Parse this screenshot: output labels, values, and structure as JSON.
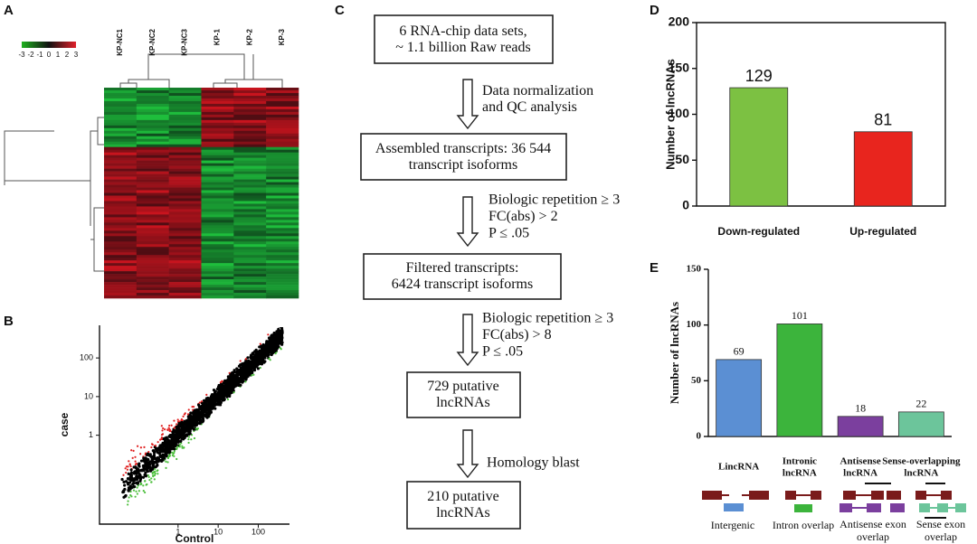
{
  "panel_labels": [
    "A",
    "B",
    "C",
    "D",
    "E"
  ],
  "heatmap": {
    "columns": [
      "KP-NC1",
      "KP-NC2",
      "KP-NC3",
      "KP-1",
      "KP-2",
      "KP-3"
    ],
    "colorbar_ticks": [
      -3,
      -2,
      -1,
      0,
      1,
      2,
      3
    ]
  },
  "scatter": {
    "xlabel": "Control",
    "ylabel": "case",
    "xlim": [
      0.011,
      600
    ],
    "ylim": [
      0.005,
      700
    ],
    "xticks": [
      1,
      10,
      100
    ],
    "yticks": [
      1,
      10,
      100
    ],
    "log_scale": true
  },
  "flowchart": {
    "boxes": [
      "6 RNA-chip data sets,\n~ 1.1 billion Raw reads",
      "Assembled transcripts: 36 544\ntranscript isoforms",
      "Filtered transcripts:\n6424 transcript isoforms",
      "729 putative\nlncRNAs",
      "210 putative\nlncRNAs"
    ],
    "steps": [
      "Data normalization\nand QC analysis",
      "Biologic repetition ≥ 3\nFC(abs) > 2\nP ≤ .05",
      "Biologic repetition ≥ 3\nFC(abs) > 8\nP ≤ .05",
      "Homology blast"
    ]
  },
  "chart_data": [
    {
      "type": "bar",
      "ylabel": "Number of lncRNAs",
      "categories": [
        "Down-regulated",
        "Up-regulated"
      ],
      "values": [
        129,
        81
      ],
      "colors": [
        "#7cc142",
        "#e8251e"
      ],
      "ylim": [
        0,
        200
      ],
      "yticks": [
        0,
        50,
        100,
        150,
        200
      ],
      "grid": false
    },
    {
      "type": "bar",
      "ylabel": "Number of lncRNAs",
      "categories": [
        "LincRNA",
        "Intronic\nlncRNA",
        "Antisense\nlncRNA",
        "Sense-overlapping\nlncRNA"
      ],
      "values": [
        69,
        101,
        18,
        22
      ],
      "colors": [
        "#5b8fd3",
        "#3cb43c",
        "#7b3f9e",
        "#6cc59b"
      ],
      "ylim": [
        0,
        150
      ],
      "yticks": [
        0,
        50,
        100,
        150
      ],
      "grid": false
    }
  ],
  "gene_structures": [
    "Intergenic",
    "Intron overlap",
    "Antisense exon\noverlap",
    "Sense exon\noverlap"
  ]
}
